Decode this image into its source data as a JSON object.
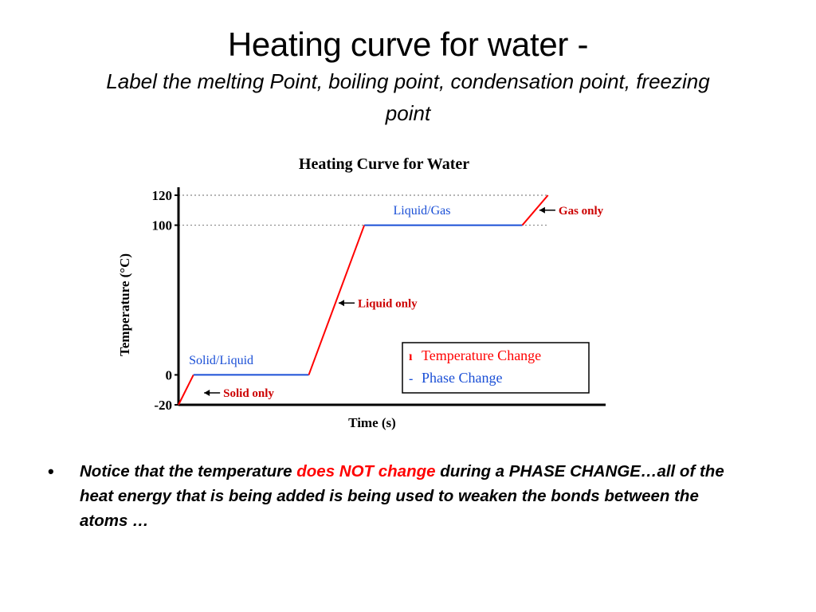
{
  "slide": {
    "title": "Heating curve for water  -",
    "subtitle": "Label the melting Point, boiling point, condensation point, freezing point",
    "bullet": {
      "marker": "•",
      "text_before": "Notice that the temperature ",
      "emphasis": "does NOT change",
      "text_after": " during a PHASE CHANGE…all of the heat energy that is being added is being used to weaken the bonds between the atoms …"
    }
  },
  "chart_data": {
    "type": "line",
    "title": "Heating Curve for Water",
    "xlabel": "Time (s)",
    "ylabel": "Temperature (°C)",
    "y_ticks": [
      120,
      100,
      0,
      -20
    ],
    "x_unit_note": "time axis has no tick labels",
    "xlim": [
      0,
      100
    ],
    "ylim": [
      -20,
      120
    ],
    "reference_lines": [
      120,
      100
    ],
    "series": [
      {
        "name": "Temperature Change",
        "color": "#ff0000",
        "x": [
          0,
          3.5
        ],
        "y": [
          -20,
          0
        ]
      },
      {
        "name": "Phase Change",
        "color": "#1a4fd6",
        "x": [
          3.5,
          30.5
        ],
        "y": [
          0,
          0
        ]
      },
      {
        "name": "Temperature Change",
        "color": "#ff0000",
        "x": [
          30.5,
          43.5
        ],
        "y": [
          0,
          100
        ]
      },
      {
        "name": "Phase Change",
        "color": "#1a4fd6",
        "x": [
          43.5,
          80.5
        ],
        "y": [
          100,
          100
        ]
      },
      {
        "name": "Temperature Change",
        "color": "#ff0000",
        "x": [
          80.5,
          86.5
        ],
        "y": [
          100,
          120
        ]
      }
    ],
    "segment_labels": [
      {
        "text": "Solid/Liquid",
        "color": "#1a4fd6",
        "x": 10,
        "y": 3,
        "kind": "above"
      },
      {
        "text": "Liquid/Gas",
        "color": "#1a4fd6",
        "x": 57,
        "y": 103,
        "kind": "above"
      },
      {
        "text": "Solid only",
        "color": "#cc0000",
        "x": 6,
        "y": -12,
        "kind": "arrow"
      },
      {
        "text": "Liquid only",
        "color": "#cc0000",
        "x": 37.5,
        "y": 48,
        "kind": "arrow"
      },
      {
        "text": "Gas only",
        "color": "#cc0000",
        "x": 84.5,
        "y": 110,
        "kind": "arrow"
      }
    ],
    "legend": {
      "placement": "bottom-right",
      "entries": [
        {
          "label": "Temperature Change",
          "color": "#ff0000",
          "marker": "ı"
        },
        {
          "label": "Phase Change",
          "color": "#1a4fd6",
          "marker": "-"
        }
      ]
    }
  }
}
